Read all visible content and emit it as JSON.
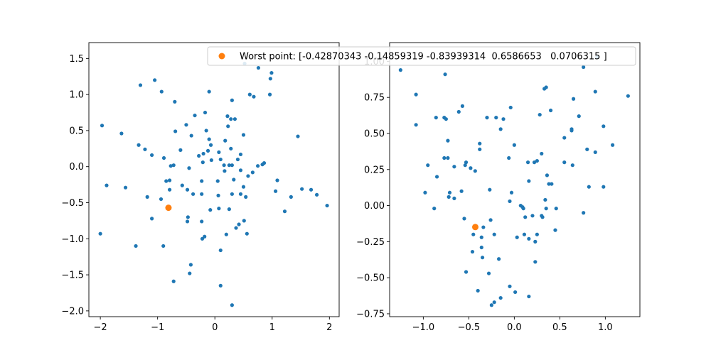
{
  "chart_data": [
    {
      "type": "scatter",
      "title": "",
      "xlabel": "",
      "ylabel": "",
      "xlim": [
        -2.2,
        2.17
      ],
      "ylim": [
        -2.08,
        1.72
      ],
      "grid": false,
      "xticks": [
        -2,
        -1,
        0,
        1,
        2
      ],
      "xtick_labels": [
        "−2",
        "−1",
        "0",
        "1",
        "2"
      ],
      "yticks": [
        -2.0,
        -1.5,
        -1.0,
        -0.5,
        0.0,
        0.5,
        1.0,
        1.5
      ],
      "ytick_labels": [
        "−2.0",
        "−1.5",
        "−1.0",
        "−0.5",
        "0.0",
        "0.5",
        "1.0",
        "1.5"
      ],
      "series": [
        {
          "color": "#1f77b4",
          "marker": "small-circle",
          "points": [
            [
              -1.3,
              1.13
            ],
            [
              -1.05,
              1.2
            ],
            [
              -0.93,
              1.04
            ],
            [
              -0.7,
              0.9
            ],
            [
              0.52,
              1.43
            ],
            [
              0.76,
              1.37
            ],
            [
              0.99,
              1.3
            ],
            [
              0.97,
              1.22
            ],
            [
              0.96,
              1.0
            ],
            [
              0.61,
              1.0
            ],
            [
              0.68,
              0.97
            ],
            [
              -0.1,
              1.04
            ],
            [
              -0.17,
              0.75
            ],
            [
              -0.35,
              0.71
            ],
            [
              0.3,
              0.92
            ],
            [
              0.22,
              0.7
            ],
            [
              0.28,
              0.66
            ],
            [
              0.35,
              0.66
            ],
            [
              -1.97,
              0.57
            ],
            [
              -1.63,
              0.46
            ],
            [
              -0.69,
              0.49
            ],
            [
              -0.5,
              0.58
            ],
            [
              -0.41,
              0.43
            ],
            [
              -0.15,
              0.5
            ],
            [
              0.23,
              0.56
            ],
            [
              0.5,
              0.44
            ],
            [
              1.45,
              0.42
            ],
            [
              -1.33,
              0.3
            ],
            [
              -1.22,
              0.24
            ],
            [
              -1.1,
              0.16
            ],
            [
              -0.89,
              0.12
            ],
            [
              -0.6,
              0.23
            ],
            [
              -0.28,
              0.15
            ],
            [
              -0.2,
              0.18
            ],
            [
              -0.1,
              0.38
            ],
            [
              -0.07,
              0.3
            ],
            [
              0.18,
              0.36
            ],
            [
              0.28,
              0.25
            ],
            [
              -0.12,
              0.22
            ],
            [
              0.07,
              0.2
            ],
            [
              0.1,
              0.1
            ],
            [
              0.4,
              0.1
            ],
            [
              0.45,
              0.17
            ],
            [
              -0.77,
              0.01
            ],
            [
              -0.72,
              0.02
            ],
            [
              -0.45,
              -0.02
            ],
            [
              -0.21,
              0.06
            ],
            [
              -0.06,
              0.09
            ],
            [
              0.16,
              0.02
            ],
            [
              0.25,
              0.02
            ],
            [
              0.3,
              0.02
            ],
            [
              0.17,
              -0.06
            ],
            [
              0.45,
              -0.05
            ],
            [
              0.66,
              -0.08
            ],
            [
              0.75,
              0.01
            ],
            [
              0.86,
              0.05
            ],
            [
              0.83,
              0.03
            ],
            [
              -1.89,
              -0.26
            ],
            [
              -1.56,
              -0.29
            ],
            [
              -0.85,
              -0.2
            ],
            [
              -0.79,
              -0.19
            ],
            [
              -0.57,
              -0.26
            ],
            [
              -0.48,
              -0.32
            ],
            [
              -0.38,
              -0.38
            ],
            [
              -0.23,
              -0.2
            ],
            [
              0.05,
              -0.2
            ],
            [
              0.33,
              -0.18
            ],
            [
              0.5,
              -0.28
            ],
            [
              0.58,
              -0.13
            ],
            [
              1.09,
              -0.19
            ],
            [
              1.06,
              -0.34
            ],
            [
              1.33,
              -0.42
            ],
            [
              1.52,
              -0.31
            ],
            [
              1.68,
              -0.32
            ],
            [
              1.78,
              -0.39
            ],
            [
              1.96,
              -0.54
            ],
            [
              -1.18,
              -0.42
            ],
            [
              -0.94,
              -0.45
            ],
            [
              -0.79,
              -0.32
            ],
            [
              -0.23,
              -0.38
            ],
            [
              0.06,
              -0.4
            ],
            [
              0.3,
              -0.38
            ],
            [
              0.45,
              -0.38
            ],
            [
              0.54,
              -0.42
            ],
            [
              -1.1,
              -0.72
            ],
            [
              -0.47,
              -0.7
            ],
            [
              -0.48,
              -0.76
            ],
            [
              -0.23,
              -0.76
            ],
            [
              -0.08,
              -0.6
            ],
            [
              0.07,
              -0.58
            ],
            [
              0.25,
              -0.59
            ],
            [
              0.42,
              -0.8
            ],
            [
              0.51,
              -0.75
            ],
            [
              1.22,
              -0.62
            ],
            [
              -2.0,
              -0.93
            ],
            [
              -1.38,
              -1.1
            ],
            [
              -0.9,
              -1.1
            ],
            [
              -0.22,
              -1.0
            ],
            [
              -0.18,
              -0.97
            ],
            [
              0.2,
              -0.94
            ],
            [
              0.37,
              -0.85
            ],
            [
              0.56,
              -0.93
            ],
            [
              0.1,
              -1.16
            ],
            [
              -0.42,
              -1.36
            ],
            [
              -0.44,
              -1.48
            ],
            [
              -0.72,
              -1.59
            ],
            [
              0.1,
              -1.65
            ],
            [
              0.3,
              -1.92
            ]
          ]
        },
        {
          "name": "Worst point: [-0.42870343 -0.14859319 -0.83939314  0.6586653   0.0706315 ]",
          "color": "#ff7f0e",
          "marker": "circle",
          "points": [
            [
              -0.81,
              -0.57
            ]
          ]
        }
      ]
    },
    {
      "type": "scatter",
      "title": "",
      "xlabel": "",
      "ylabel": "",
      "xlim": [
        -1.37,
        1.38
      ],
      "ylim": [
        -0.77,
        1.13
      ],
      "grid": false,
      "xticks": [
        -1.0,
        -0.5,
        0.0,
        0.5,
        1.0
      ],
      "xtick_labels": [
        "−1.0",
        "−0.5",
        "0.0",
        "0.5",
        "1.0"
      ],
      "yticks": [
        -0.75,
        -0.5,
        -0.25,
        0.0,
        0.25,
        0.5,
        0.75,
        1.0
      ],
      "ytick_labels": [
        "−0.75",
        "−0.50",
        "−0.25",
        "0.00",
        "0.25",
        "0.50",
        "0.75",
        "1.00"
      ],
      "series": [
        {
          "color": "#1f77b4",
          "marker": "small-circle",
          "points": [
            [
              -1.25,
              0.94
            ],
            [
              -1.08,
              0.77
            ],
            [
              -0.76,
              0.91
            ],
            [
              0.35,
              0.82
            ],
            [
              0.33,
              0.81
            ],
            [
              0.91,
              1.03
            ],
            [
              0.76,
              0.96
            ],
            [
              1.25,
              0.76
            ],
            [
              -1.08,
              0.56
            ],
            [
              -0.73,
              0.45
            ],
            [
              -0.61,
              0.65
            ],
            [
              -0.57,
              0.69
            ],
            [
              -0.86,
              0.61
            ],
            [
              -0.77,
              0.61
            ],
            [
              -0.75,
              0.6
            ],
            [
              -0.3,
              0.61
            ],
            [
              -0.2,
              0.61
            ],
            [
              -0.12,
              0.6
            ],
            [
              -0.04,
              0.68
            ],
            [
              0.28,
              0.63
            ],
            [
              0.4,
              0.66
            ],
            [
              0.63,
              0.53
            ],
            [
              0.63,
              0.52
            ],
            [
              0.65,
              0.74
            ],
            [
              0.71,
              0.62
            ],
            [
              0.89,
              0.79
            ],
            [
              0.98,
              0.55
            ],
            [
              1.08,
              0.42
            ],
            [
              -0.15,
              0.53
            ],
            [
              -0.38,
              0.43
            ],
            [
              -0.38,
              0.39
            ],
            [
              0.0,
              0.42
            ],
            [
              0.25,
              0.31
            ],
            [
              0.3,
              0.36
            ],
            [
              0.38,
              0.15
            ],
            [
              0.55,
              0.47
            ],
            [
              0.8,
              0.39
            ],
            [
              0.89,
              0.37
            ],
            [
              -0.95,
              0.28
            ],
            [
              -0.77,
              0.33
            ],
            [
              -0.73,
              0.33
            ],
            [
              -0.85,
              0.2
            ],
            [
              -0.66,
              0.27
            ],
            [
              -0.53,
              0.3
            ],
            [
              -0.54,
              0.28
            ],
            [
              -0.48,
              0.26
            ],
            [
              -0.43,
              0.24
            ],
            [
              -0.06,
              0.33
            ],
            [
              0.15,
              0.3
            ],
            [
              0.22,
              0.3
            ],
            [
              0.36,
              0.21
            ],
            [
              0.55,
              0.3
            ],
            [
              0.64,
              0.28
            ],
            [
              0.82,
              0.13
            ],
            [
              0.98,
              0.13
            ],
            [
              0.16,
              0.17
            ],
            [
              -0.98,
              0.09
            ],
            [
              -0.88,
              -0.02
            ],
            [
              -0.71,
              0.09
            ],
            [
              -0.72,
              0.06
            ],
            [
              -0.66,
              0.05
            ],
            [
              -0.58,
              0.1
            ],
            [
              -0.27,
              0.11
            ],
            [
              -0.03,
              0.09
            ],
            [
              -0.05,
              0.03
            ],
            [
              0.07,
              0.0
            ],
            [
              0.09,
              -0.01
            ],
            [
              0.1,
              -0.02
            ],
            [
              0.12,
              -0.08
            ],
            [
              0.2,
              -0.07
            ],
            [
              0.3,
              -0.07
            ],
            [
              0.34,
              0.04
            ],
            [
              0.35,
              -0.02
            ],
            [
              0.41,
              0.15
            ],
            [
              0.46,
              -0.02
            ],
            [
              0.31,
              -0.08
            ],
            [
              0.45,
              -0.17
            ],
            [
              0.76,
              -0.05
            ],
            [
              -0.55,
              -0.09
            ],
            [
              -0.45,
              -0.2
            ],
            [
              -0.36,
              -0.22
            ],
            [
              -0.34,
              -0.15
            ],
            [
              -0.26,
              -0.1
            ],
            [
              -0.22,
              -0.2
            ],
            [
              0.03,
              -0.22
            ],
            [
              0.11,
              -0.2
            ],
            [
              0.16,
              -0.23
            ],
            [
              0.23,
              -0.25
            ],
            [
              0.25,
              -0.2
            ],
            [
              -0.46,
              -0.32
            ],
            [
              -0.36,
              -0.29
            ],
            [
              -0.35,
              -0.36
            ],
            [
              -0.28,
              -0.47
            ],
            [
              -0.17,
              -0.37
            ],
            [
              -0.53,
              -0.46
            ],
            [
              -0.4,
              -0.59
            ],
            [
              -0.05,
              -0.56
            ],
            [
              0.01,
              -0.6
            ],
            [
              0.16,
              -0.63
            ],
            [
              -0.15,
              -0.64
            ],
            [
              -0.22,
              -0.67
            ],
            [
              -0.25,
              -0.69
            ],
            [
              0.23,
              -0.39
            ]
          ]
        },
        {
          "name": "Worst point: [-0.42870343 -0.14859319 -0.83939314  0.6586653   0.0706315 ]",
          "color": "#ff7f0e",
          "marker": "circle",
          "points": [
            [
              -0.42870343,
              -0.14859319
            ]
          ]
        }
      ]
    }
  ],
  "legend": {
    "placement": "upper-right",
    "label": "Worst point: [-0.42870343 -0.14859319 -0.83939314  0.6586653   0.0706315 ]",
    "color": "#ff7f0e"
  }
}
